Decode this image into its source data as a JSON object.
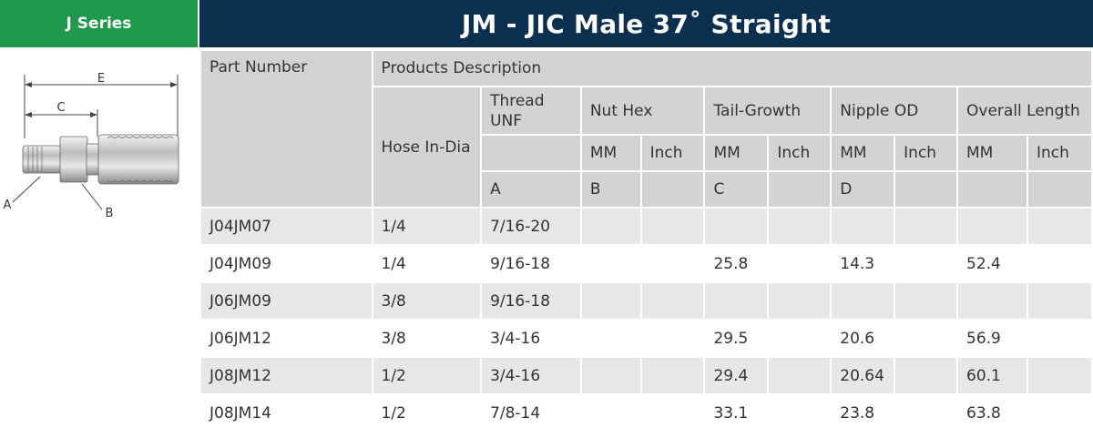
{
  "series_tab": "J Series",
  "title": "JM - JIC Male 37˚ Straight",
  "diagram": {
    "label_e": "E",
    "label_c": "C",
    "label_a": "A",
    "label_b": "B"
  },
  "headers": {
    "part_number": "Part Number",
    "products_description": "Products Description",
    "hose_india": "Hose In-Dia",
    "thread_unf": "Thread UNF",
    "nut_hex": "Nut Hex",
    "tail_growth": "Tail-Growth",
    "nipple_od": "Nipple OD",
    "overall_length": "Overall Length",
    "mm": "MM",
    "inch": "Inch",
    "dim_a": "A",
    "dim_b": "B",
    "dim_c": "C",
    "dim_d": "D"
  },
  "rows": [
    {
      "part": "J04JM07",
      "hose": "1/4",
      "thread": "7/16-20",
      "nut_mm": "",
      "nut_inch": "",
      "tail_mm": "",
      "tail_inch": "",
      "nipple_mm": "",
      "nipple_inch": "",
      "overall_mm": "",
      "overall_inch": ""
    },
    {
      "part": "J04JM09",
      "hose": "1/4",
      "thread": "9/16-18",
      "nut_mm": "",
      "nut_inch": "",
      "tail_mm": "25.8",
      "tail_inch": "",
      "nipple_mm": "14.3",
      "nipple_inch": "",
      "overall_mm": "52.4",
      "overall_inch": ""
    },
    {
      "part": "J06JM09",
      "hose": "3/8",
      "thread": "9/16-18",
      "nut_mm": "",
      "nut_inch": "",
      "tail_mm": "",
      "tail_inch": "",
      "nipple_mm": "",
      "nipple_inch": "",
      "overall_mm": "",
      "overall_inch": ""
    },
    {
      "part": "J06JM12",
      "hose": "3/8",
      "thread": "3/4-16",
      "nut_mm": "",
      "nut_inch": "",
      "tail_mm": "29.5",
      "tail_inch": "",
      "nipple_mm": "20.6",
      "nipple_inch": "",
      "overall_mm": "56.9",
      "overall_inch": ""
    },
    {
      "part": "J08JM12",
      "hose": "1/2",
      "thread": "3/4-16",
      "nut_mm": "",
      "nut_inch": "",
      "tail_mm": "29.4",
      "tail_inch": "",
      "nipple_mm": "20.64",
      "nipple_inch": "",
      "overall_mm": "60.1",
      "overall_inch": ""
    },
    {
      "part": "J08JM14",
      "hose": "1/2",
      "thread": "7/8-14",
      "nut_mm": "",
      "nut_inch": "",
      "tail_mm": "33.1",
      "tail_inch": "",
      "nipple_mm": "23.8",
      "nipple_inch": "",
      "overall_mm": "63.8",
      "overall_inch": ""
    }
  ],
  "colors": {
    "green": "#1f9a4c",
    "navy": "#0a2f4f",
    "header_gray": "#d2d3d5",
    "row_gray": "#e6e7e8"
  }
}
